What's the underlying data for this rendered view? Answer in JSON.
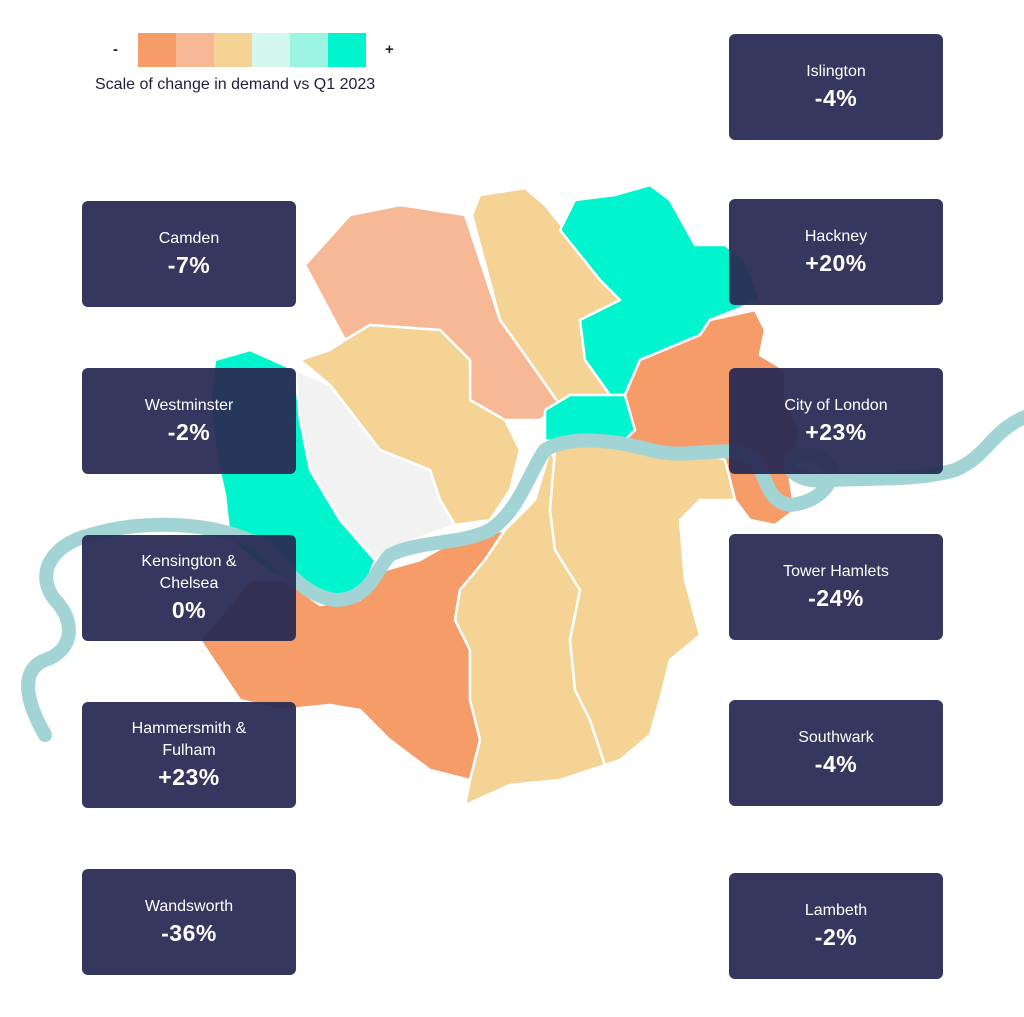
{
  "colors": {
    "orange": "#f59c68",
    "salmon": "#f7b895",
    "sand": "#f4d395",
    "mint": "#00f5cf",
    "grey": "#f2f2f2",
    "river": "#a3d4d5",
    "card_bg": "#282a54"
  },
  "legend": {
    "minus": "-",
    "plus": "+",
    "caption": "Scale of change in demand vs Q1 2023",
    "swatches": [
      "#f59c68",
      "#f7b895",
      "#f4d395",
      "#d4f8ee",
      "#9cf4e2",
      "#00f5cf"
    ]
  },
  "boroughs_left": [
    {
      "name": "Camden",
      "value": "-7%"
    },
    {
      "name": "Westminster",
      "value": "-2%"
    },
    {
      "name": "Kensington & Chelsea",
      "value": "0%"
    },
    {
      "name": "Hammersmith & Fulham",
      "value": "+23%"
    },
    {
      "name": "Wandsworth",
      "value": "-36%"
    }
  ],
  "boroughs_right": [
    {
      "name": "Islington",
      "value": "-4%"
    },
    {
      "name": "Hackney",
      "value": "+20%"
    },
    {
      "name": "City of London",
      "value": "+23%"
    },
    {
      "name": "Tower Hamlets",
      "value": "-24%"
    },
    {
      "name": "Southwark",
      "value": "-4%"
    },
    {
      "name": "Lambeth",
      "value": "-2%"
    }
  ]
}
